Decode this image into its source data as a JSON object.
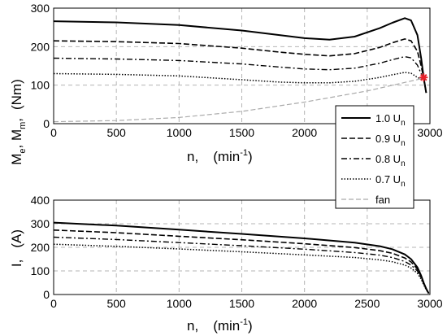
{
  "chart_data": [
    {
      "type": "line",
      "xlabel": "n,",
      "xlabel_unit": "(min",
      "xlabel_unit_sup": "-1",
      "xlabel_unit_close": ")",
      "ylabel_parts": [
        "M",
        "e",
        ", M",
        "m",
        ",",
        "(Nm)"
      ],
      "xlim": [
        0,
        3000
      ],
      "ylim": [
        0,
        300
      ],
      "xticks": [
        0,
        500,
        1000,
        1500,
        2000,
        2500,
        3000
      ],
      "yticks": [
        0,
        100,
        200,
        300
      ],
      "grid": true,
      "legend": "right-bottom",
      "series": [
        {
          "name": "1.0 U",
          "sub": "n",
          "style": "solid",
          "x": [
            0,
            500,
            1000,
            1500,
            1800,
            2000,
            2200,
            2400,
            2600,
            2700,
            2800,
            2850,
            2900,
            2930,
            2950,
            2970
          ],
          "y": [
            266,
            263,
            256,
            242,
            230,
            222,
            218,
            226,
            248,
            262,
            274,
            268,
            230,
            170,
            120,
            80
          ]
        },
        {
          "name": "0.9 U",
          "sub": "n",
          "style": "dashed",
          "x": [
            0,
            500,
            1000,
            1500,
            1800,
            2000,
            2200,
            2400,
            2600,
            2700,
            2800,
            2850,
            2900,
            2930,
            2950,
            2970
          ],
          "y": [
            215,
            213,
            208,
            196,
            186,
            180,
            176,
            182,
            198,
            210,
            220,
            215,
            188,
            150,
            118,
            80
          ]
        },
        {
          "name": "0.8 U",
          "sub": "n",
          "style": "dashdot",
          "x": [
            0,
            500,
            1000,
            1500,
            1800,
            2000,
            2200,
            2400,
            2600,
            2700,
            2800,
            2850,
            2900,
            2930,
            2950,
            2970
          ],
          "y": [
            170,
            168,
            164,
            155,
            147,
            142,
            140,
            144,
            157,
            166,
            174,
            171,
            152,
            130,
            116,
            80
          ]
        },
        {
          "name": "0.7 U",
          "sub": "n",
          "style": "dotted",
          "x": [
            0,
            500,
            1000,
            1500,
            1800,
            2000,
            2200,
            2400,
            2600,
            2700,
            2800,
            2850,
            2900,
            2930,
            2950,
            2970
          ],
          "y": [
            130,
            128,
            124,
            114,
            108,
            106,
            106,
            110,
            120,
            127,
            133,
            131,
            120,
            116,
            114,
            80
          ]
        },
        {
          "name": "fan",
          "sub": "",
          "style": "gray-dashed",
          "x": [
            0,
            500,
            1000,
            1500,
            2000,
            2500,
            2950
          ],
          "y": [
            5,
            8,
            16,
            32,
            56,
            85,
            118
          ]
        }
      ],
      "marker": {
        "x": 2950,
        "y": 120,
        "color": "#e8202a"
      }
    },
    {
      "type": "line",
      "xlabel": "n,",
      "xlabel_unit": "(min",
      "xlabel_unit_sup": "-1",
      "xlabel_unit_close": ")",
      "ylabel_parts": [
        "I,",
        "(A)"
      ],
      "xlim": [
        0,
        3000
      ],
      "ylim": [
        0,
        400
      ],
      "xticks": [
        0,
        500,
        1000,
        1500,
        2000,
        2500,
        3000
      ],
      "yticks": [
        0,
        100,
        200,
        300,
        400
      ],
      "grid": true,
      "series": [
        {
          "name": "1.0 U",
          "style": "solid",
          "x": [
            0,
            500,
            1000,
            1500,
            2000,
            2400,
            2600,
            2700,
            2800,
            2850,
            2900,
            2930,
            2950,
            2970,
            2990
          ],
          "y": [
            305,
            292,
            275,
            257,
            238,
            220,
            205,
            192,
            170,
            150,
            115,
            80,
            50,
            25,
            5
          ]
        },
        {
          "name": "0.9 U",
          "style": "dashed",
          "x": [
            0,
            500,
            1000,
            1500,
            2000,
            2400,
            2600,
            2700,
            2800,
            2850,
            2900,
            2930,
            2950,
            2970,
            2990
          ],
          "y": [
            273,
            262,
            247,
            232,
            215,
            199,
            186,
            175,
            155,
            138,
            108,
            75,
            48,
            25,
            5
          ]
        },
        {
          "name": "0.8 U",
          "style": "dashdot",
          "x": [
            0,
            500,
            1000,
            1500,
            2000,
            2400,
            2600,
            2700,
            2800,
            2850,
            2900,
            2930,
            2950,
            2970,
            2990
          ],
          "y": [
            243,
            233,
            220,
            207,
            192,
            178,
            167,
            157,
            140,
            125,
            100,
            70,
            45,
            22,
            5
          ]
        },
        {
          "name": "0.7 U",
          "style": "dotted",
          "x": [
            0,
            500,
            1000,
            1500,
            2000,
            2400,
            2600,
            2700,
            2800,
            2850,
            2900,
            2930,
            2950,
            2970,
            2990
          ],
          "y": [
            213,
            204,
            193,
            181,
            168,
            157,
            147,
            139,
            125,
            112,
            90,
            65,
            42,
            20,
            5
          ]
        }
      ]
    }
  ]
}
